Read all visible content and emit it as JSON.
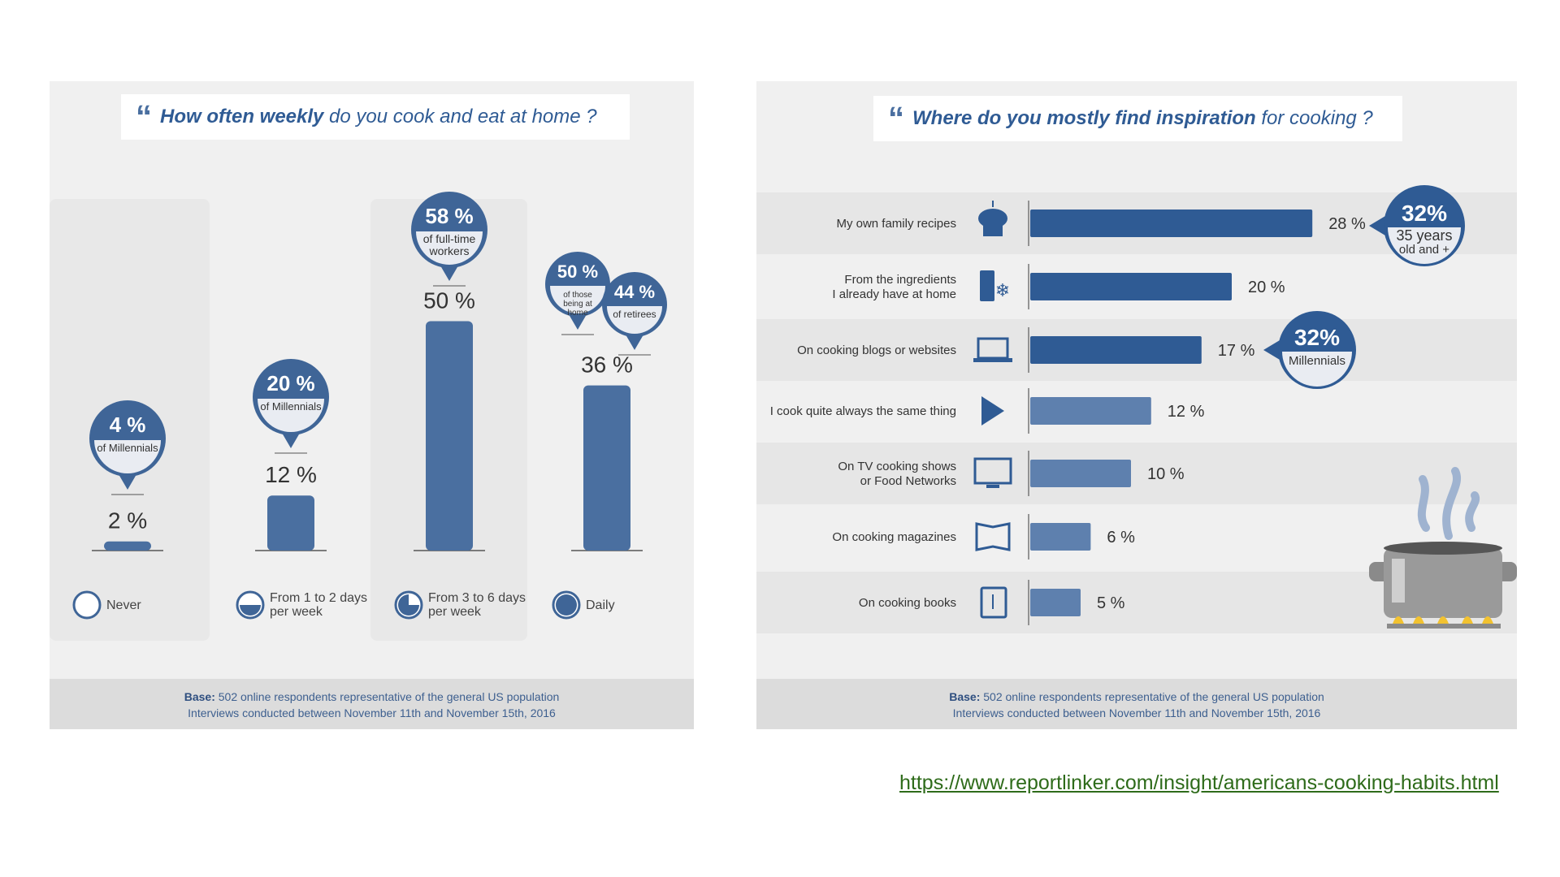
{
  "left": {
    "title_quote": "“",
    "title_bold": "How often weekly",
    "title_rest": "do you cook and eat at home ?",
    "footer_base_label": "Base:",
    "footer_line1": "502 online respondents representative of the general US population",
    "footer_line2": "Interviews conducted between November 11th and November 15th, 2016"
  },
  "right": {
    "title_quote": "“",
    "title_bold": "Where do you mostly find inspiration",
    "title_rest": "for cooking ?",
    "footer_base_label": "Base:",
    "footer_line1": "502 online respondents representative of the general US population",
    "footer_line2": "Interviews conducted between November 11th and November 15th, 2016"
  },
  "chart_data": [
    {
      "type": "bar",
      "title": "How often weekly do you cook and eat at home ?",
      "categories": [
        "Never",
        "From 1 to 2 days per week",
        "From 3 to 6 days per week",
        "Daily"
      ],
      "values": [
        2,
        12,
        50,
        36
      ],
      "value_labels": [
        "2 %",
        "12 %",
        "50 %",
        "36 %"
      ],
      "legend_fill": [
        0,
        0.5,
        0.75,
        1
      ],
      "annotations": [
        {
          "category": "Never",
          "value": "4 %",
          "text": "of Millennials"
        },
        {
          "category": "From 1 to 2 days per week",
          "value": "20 %",
          "text": "of Millennials"
        },
        {
          "category": "From 3 to 6 days per week",
          "value": "58 %",
          "text": "of full-time workers"
        },
        {
          "category": "Daily",
          "value": "50 %",
          "text": "of those being at home"
        },
        {
          "category": "Daily",
          "value": "44 %",
          "text": "of retirees"
        }
      ],
      "colors": {
        "bar": "#4a6fa0",
        "bubble": "#3f6597"
      }
    },
    {
      "type": "bar",
      "orientation": "horizontal",
      "title": "Where do you mostly find inspiration for cooking ?",
      "categories": [
        "My own family recipes",
        "From the ingredients I already have at home",
        "On cooking blogs or websites",
        "I cook quite always the same thing",
        "On TV cooking shows or Food Networks",
        "On cooking magazines",
        "On cooking books"
      ],
      "values": [
        28,
        20,
        17,
        12,
        10,
        6,
        5
      ],
      "value_labels": [
        "28 %",
        "20 %",
        "17 %",
        "12 %",
        "10 %",
        "6 %",
        "5 %"
      ],
      "icons": [
        "chef-hat-icon",
        "fridge-icon",
        "laptop-icon",
        "pasta-icon",
        "tv-icon",
        "magazine-icon",
        "cookbook-icon"
      ],
      "annotations": [
        {
          "category": "My own family recipes",
          "value": "32%",
          "text": "35 years old and +"
        },
        {
          "category": "On cooking blogs or websites",
          "value": "32%",
          "text": "Millennials"
        }
      ],
      "colors": {
        "bar_dark": "#2f5b94",
        "bar_light": "#5e80ae",
        "bubble": "#2f5b94"
      }
    }
  ],
  "url": "https://www.reportlinker.com/insight/americans-cooking-habits.html"
}
